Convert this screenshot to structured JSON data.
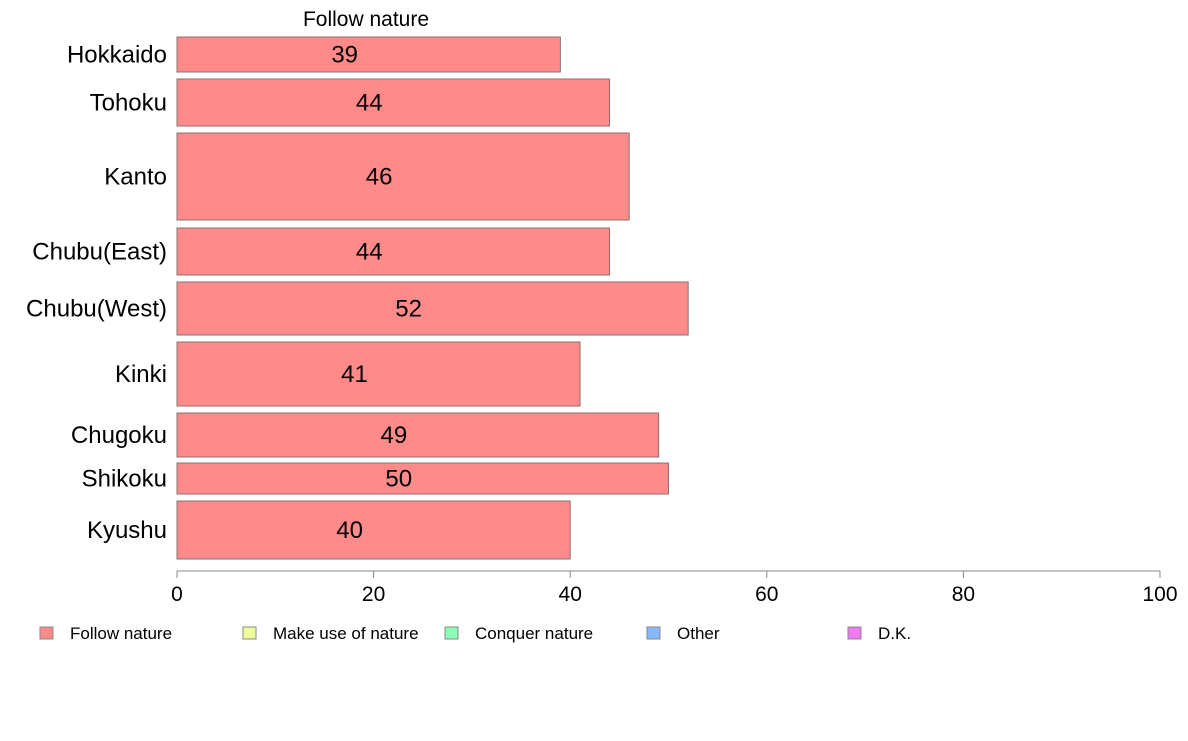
{
  "chart_data": {
    "type": "bar",
    "orientation": "horizontal",
    "title": "Follow nature",
    "categories": [
      "Hokkaido",
      "Tohoku",
      "Kanto",
      "Chubu(East)",
      "Chubu(West)",
      "Kinki",
      "Chugoku",
      "Shikoku",
      "Kyushu"
    ],
    "series": [
      {
        "name": "Follow nature",
        "values": [
          39,
          44,
          46,
          44,
          52,
          41,
          49,
          50,
          40
        ]
      }
    ],
    "data_labels": [
      "39",
      "44",
      "46",
      "44",
      "52",
      "41",
      "49",
      "50",
      "40"
    ],
    "xlim": [
      0,
      100
    ],
    "x_ticks": [
      0,
      20,
      40,
      60,
      80,
      100
    ],
    "x_tick_labels": [
      "0",
      "20",
      "40",
      "60",
      "80",
      "100"
    ],
    "xlabel": "",
    "ylabel": "",
    "grid": false,
    "legend": {
      "placement": "bottom",
      "entries": [
        {
          "label": "Follow nature",
          "color": "#ff8a8a"
        },
        {
          "label": "Make use of nature",
          "color": "#f0ff9a"
        },
        {
          "label": "Conquer nature",
          "color": "#8affb4"
        },
        {
          "label": "Other",
          "color": "#8ab8ff"
        },
        {
          "label": "D.K.",
          "color": "#f07af0"
        }
      ]
    },
    "colors": {
      "bar_fill": "#ff8a8a",
      "bar_stroke": "#8a7070",
      "axis": "#888888",
      "text": "#000000"
    }
  }
}
